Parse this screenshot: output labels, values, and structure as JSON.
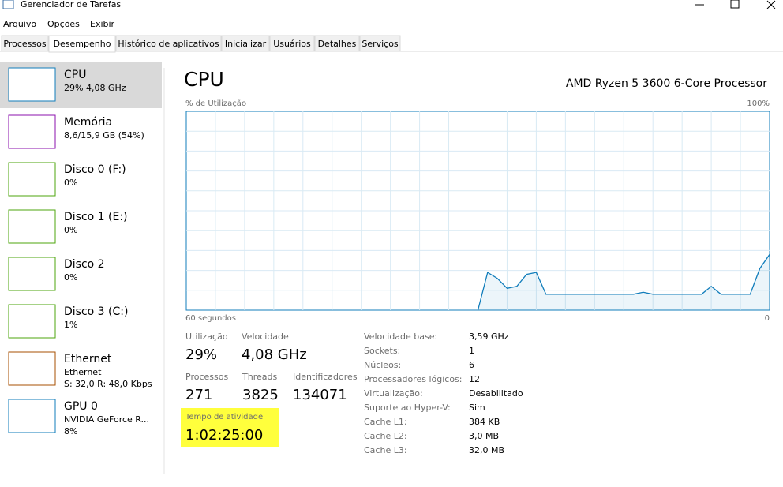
{
  "window": {
    "title": "Gerenciador de Tarefas"
  },
  "menu": [
    "Arquivo",
    "Opções",
    "Exibir"
  ],
  "tabs": [
    "Processos",
    "Desempenho",
    "Histórico de aplicativos",
    "Inicializar",
    "Usuários",
    "Detalhes",
    "Serviços"
  ],
  "sidebar": [
    {
      "name": "CPU",
      "detail": [
        "29% 4,08 GHz"
      ],
      "color": "#117dbb"
    },
    {
      "name": "Memória",
      "detail": [
        "8,6/15,9 GB (54%)"
      ],
      "color": "#8b12ae"
    },
    {
      "name": "Disco 0 (F:)",
      "detail": [
        "0%"
      ],
      "color": "#4da60c"
    },
    {
      "name": "Disco 1 (E:)",
      "detail": [
        "0%"
      ],
      "color": "#4da60c"
    },
    {
      "name": "Disco 2",
      "detail": [
        "0%"
      ],
      "color": "#4da60c"
    },
    {
      "name": "Disco 3 (C:)",
      "detail": [
        "1%"
      ],
      "color": "#4da60c"
    },
    {
      "name": "Ethernet",
      "detail": [
        "Ethernet",
        "S: 32,0 R: 48,0 Kbps"
      ],
      "color": "#a74f01"
    },
    {
      "name": "GPU 0",
      "detail": [
        "NVIDIA GeForce R...",
        "8%"
      ],
      "color": "#117dbb"
    }
  ],
  "main": {
    "title": "CPU",
    "processor": "AMD Ryzen 5 3600 6-Core Processor",
    "graph": {
      "y_label": "% de Utilização",
      "y_max_label": "100%",
      "x_label": "60 segundos",
      "x_end_label": "0",
      "color": "#117dbb",
      "ylim": [
        0,
        100
      ],
      "values": [
        null,
        null,
        null,
        null,
        null,
        null,
        null,
        null,
        null,
        null,
        null,
        null,
        null,
        null,
        null,
        null,
        null,
        null,
        null,
        null,
        null,
        null,
        null,
        null,
        null,
        null,
        null,
        null,
        null,
        null,
        0,
        19,
        16,
        11,
        12,
        18,
        19,
        8,
        8,
        8,
        8,
        8,
        8,
        8,
        8,
        8,
        8,
        9,
        8,
        8,
        8,
        8,
        8,
        8,
        12,
        8,
        8,
        8,
        8,
        21,
        28
      ]
    },
    "stats": [
      {
        "label": "Utilização",
        "value": "29%"
      },
      {
        "label": "Velocidade",
        "value": "4,08 GHz"
      },
      {
        "label": "Processos",
        "value": "271"
      },
      {
        "label": "Threads",
        "value": "3825"
      },
      {
        "label": "Identificadores",
        "value": "134071"
      }
    ],
    "uptime": {
      "label": "Tempo de atividade",
      "value": "1:02:25:00"
    },
    "details": [
      [
        "Velocidade base:",
        "3,59 GHz"
      ],
      [
        "Sockets:",
        "1"
      ],
      [
        "Núcleos:",
        "6"
      ],
      [
        "Processadores lógicos:",
        "12"
      ],
      [
        "Virtualização:",
        "Desabilitado"
      ],
      [
        "Suporte ao Hyper-V:",
        "Sim"
      ],
      [
        "Cache L1:",
        "384 KB"
      ],
      [
        "Cache L2:",
        "3,0 MB"
      ],
      [
        "Cache L3:",
        "32,0 MB"
      ]
    ]
  }
}
